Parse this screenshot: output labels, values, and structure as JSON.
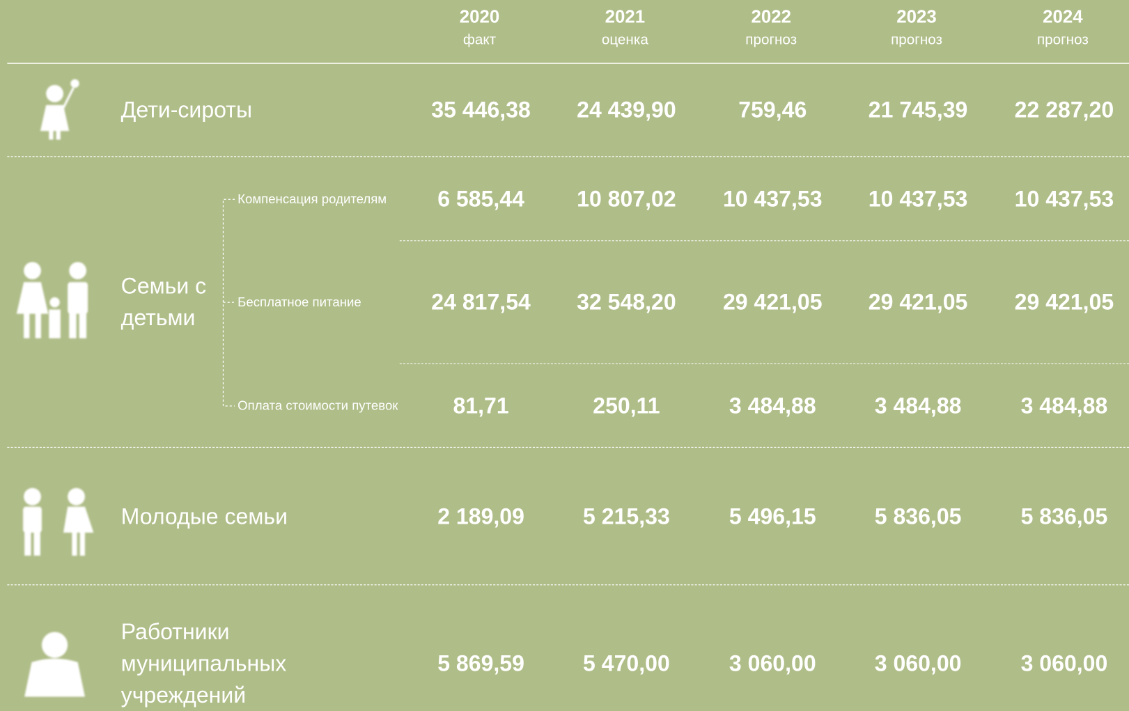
{
  "header": {
    "columns": [
      {
        "year": "2020",
        "note": "факт"
      },
      {
        "year": "2021",
        "note": "оценка"
      },
      {
        "year": "2022",
        "note": "прогноз"
      },
      {
        "year": "2023",
        "note": "прогноз"
      },
      {
        "year": "2024",
        "note": "прогноз"
      }
    ]
  },
  "rows": [
    {
      "label": "Дети-сироты",
      "values": [
        "35 446,38",
        "24 439,90",
        "759,46",
        "21 745,39",
        "22 287,20"
      ]
    },
    {
      "label": "Семьи с детьми",
      "subrows": [
        {
          "label": "Компенсация родителям",
          "values": [
            "6 585,44",
            "10 807,02",
            "10 437,53",
            "10 437,53",
            "10 437,53"
          ]
        },
        {
          "label": "Бесплатное питание",
          "values": [
            "24 817,54",
            "32 548,20",
            "29 421,05",
            "29 421,05",
            "29 421,05"
          ]
        },
        {
          "label": "Оплата стоимости путевок",
          "values": [
            "81,71",
            "250,11",
            "3 484,88",
            "3 484,88",
            "3 484,88"
          ]
        }
      ]
    },
    {
      "label": "Молодые семьи",
      "values": [
        "2 189,09",
        "5 215,33",
        "5 496,15",
        "5 836,05",
        "5 836,05"
      ]
    },
    {
      "label": "Работники муниципальных учреждений",
      "values": [
        "5 869,59",
        "5 470,00",
        "3 060,00",
        "3 060,00",
        "3 060,00"
      ]
    }
  ]
}
